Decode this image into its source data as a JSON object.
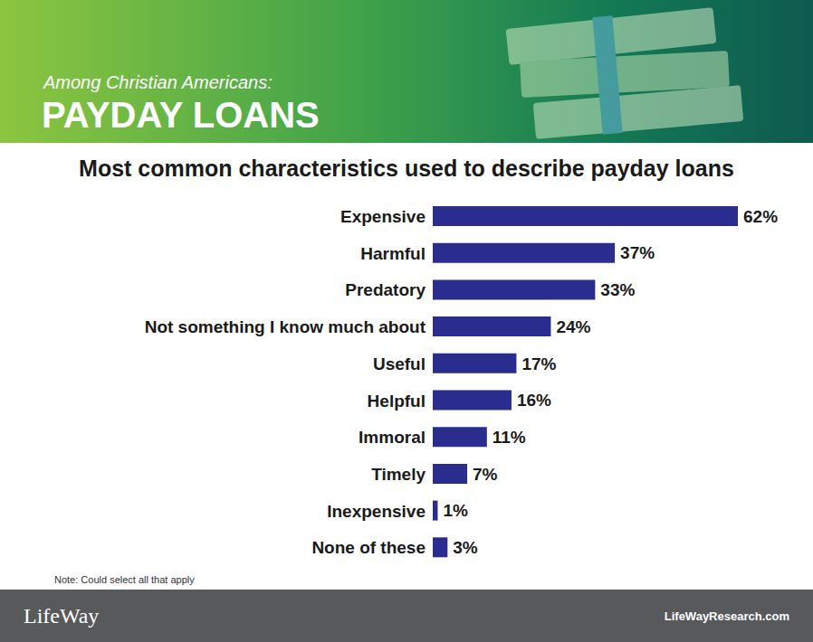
{
  "header": {
    "kicker": "Among Christian Americans:",
    "title": "PAYDAY LOANS"
  },
  "chart_data": {
    "type": "bar",
    "orientation": "horizontal",
    "title": "Most common characteristics used to describe payday loans",
    "categories": [
      "Expensive",
      "Harmful",
      "Predatory",
      "Not something I know much about",
      "Useful",
      "Helpful",
      "Immoral",
      "Timely",
      "Inexpensive",
      "None of these"
    ],
    "values": [
      62,
      37,
      33,
      24,
      17,
      16,
      11,
      7,
      1,
      3
    ],
    "value_labels": [
      "62%",
      "37%",
      "33%",
      "24%",
      "17%",
      "16%",
      "11%",
      "7%",
      "1%",
      "3%"
    ],
    "color": "#2b2d8e",
    "xlim": [
      0,
      62
    ],
    "data_labels": true,
    "tick_labels": "y",
    "grid": false
  },
  "note": "Note: Could select all that apply",
  "footer": {
    "brand": "LifeWay",
    "url": "LifeWayResearch.com"
  }
}
